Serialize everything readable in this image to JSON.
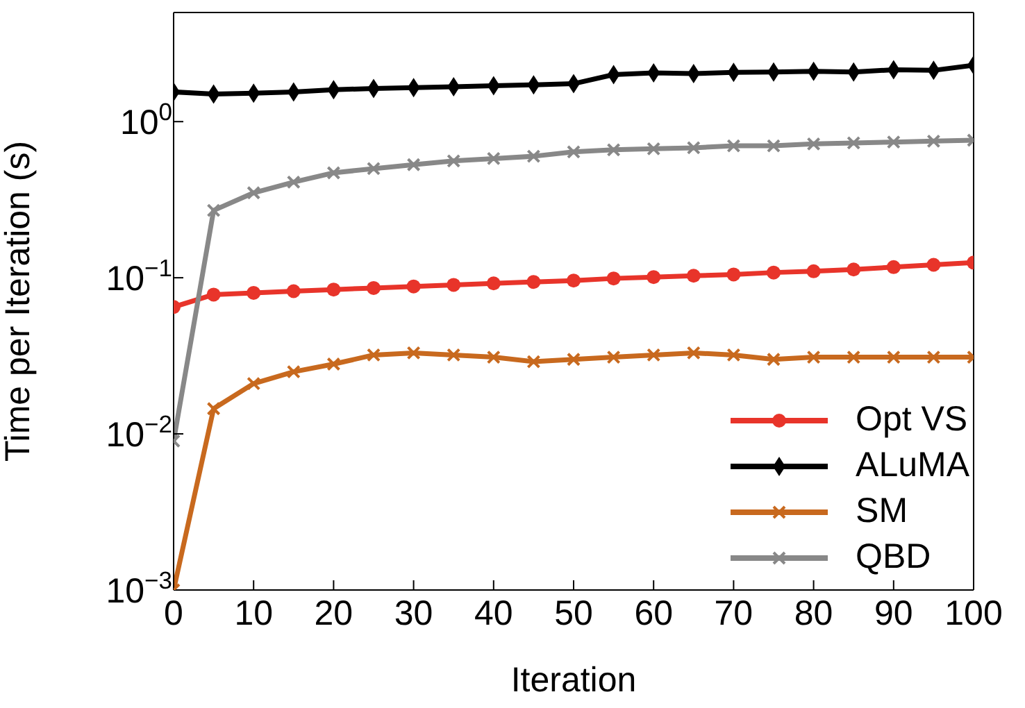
{
  "chart_data": {
    "type": "line",
    "xlabel": "Iteration",
    "ylabel": "Time per Iteration (s)",
    "x": [
      0,
      5,
      10,
      15,
      20,
      25,
      30,
      35,
      40,
      45,
      50,
      55,
      60,
      65,
      70,
      75,
      80,
      85,
      90,
      95,
      100
    ],
    "xlim": [
      0,
      100
    ],
    "xticks": [
      0,
      10,
      20,
      30,
      40,
      50,
      60,
      70,
      80,
      90,
      100
    ],
    "ylim": [
      0.001,
      5
    ],
    "yticks": [
      {
        "value": 0.001,
        "label": "10$^{−3}$"
      },
      {
        "value": 0.01,
        "label": "10$^{−2}$"
      },
      {
        "value": 0.1,
        "label": "10$^{−1}$"
      },
      {
        "value": 1,
        "label": "10$^{0}$"
      }
    ],
    "log": "y",
    "legend": "bottom right",
    "line_style": "solid",
    "series": [
      {
        "name": "Opt VS",
        "color": "#e8342a",
        "marker": "circle",
        "values": [
          0.065,
          0.078,
          0.08,
          0.082,
          0.084,
          0.086,
          0.088,
          0.09,
          0.092,
          0.094,
          0.096,
          0.099,
          0.101,
          0.103,
          0.105,
          0.108,
          0.11,
          0.113,
          0.117,
          0.121,
          0.125
        ]
      },
      {
        "name": "ALuMA",
        "color": "#000000",
        "marker": "diamond",
        "values": [
          1.55,
          1.5,
          1.52,
          1.55,
          1.6,
          1.63,
          1.65,
          1.67,
          1.7,
          1.72,
          1.75,
          2.0,
          2.05,
          2.03,
          2.07,
          2.08,
          2.1,
          2.08,
          2.15,
          2.13,
          2.3
        ]
      },
      {
        "name": "SM",
        "color": "#c8691e",
        "marker": "cross",
        "values": [
          0.001,
          0.0145,
          0.021,
          0.025,
          0.028,
          0.032,
          0.033,
          0.032,
          0.031,
          0.029,
          0.03,
          0.031,
          0.032,
          0.033,
          0.032,
          0.03,
          0.031,
          0.031,
          0.031,
          0.031,
          0.031
        ]
      },
      {
        "name": "QBD",
        "color": "#888888",
        "marker": "cross",
        "values": [
          0.009,
          0.27,
          0.35,
          0.41,
          0.47,
          0.5,
          0.53,
          0.56,
          0.58,
          0.6,
          0.64,
          0.66,
          0.67,
          0.68,
          0.7,
          0.7,
          0.72,
          0.73,
          0.74,
          0.75,
          0.76
        ]
      }
    ]
  }
}
